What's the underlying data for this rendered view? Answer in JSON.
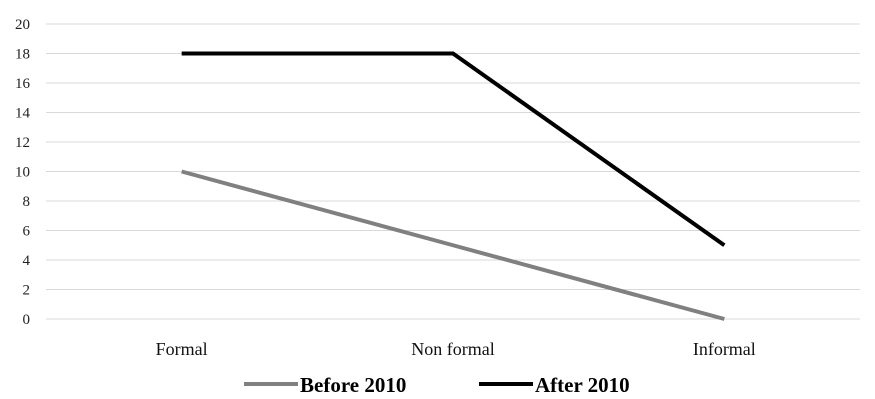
{
  "chart_data": {
    "type": "line",
    "categories": [
      "Formal",
      "Non formal",
      "Informal"
    ],
    "series": [
      {
        "name": "Before 2010",
        "values": [
          10,
          5,
          0
        ],
        "color": "#808080"
      },
      {
        "name": "After 2010",
        "values": [
          18,
          18,
          5
        ],
        "color": "#000000"
      }
    ],
    "ylim": [
      0,
      20
    ],
    "yticks": [
      0,
      2,
      4,
      6,
      8,
      10,
      12,
      14,
      16,
      18,
      20
    ],
    "grid": true,
    "legend_position": "bottom"
  }
}
